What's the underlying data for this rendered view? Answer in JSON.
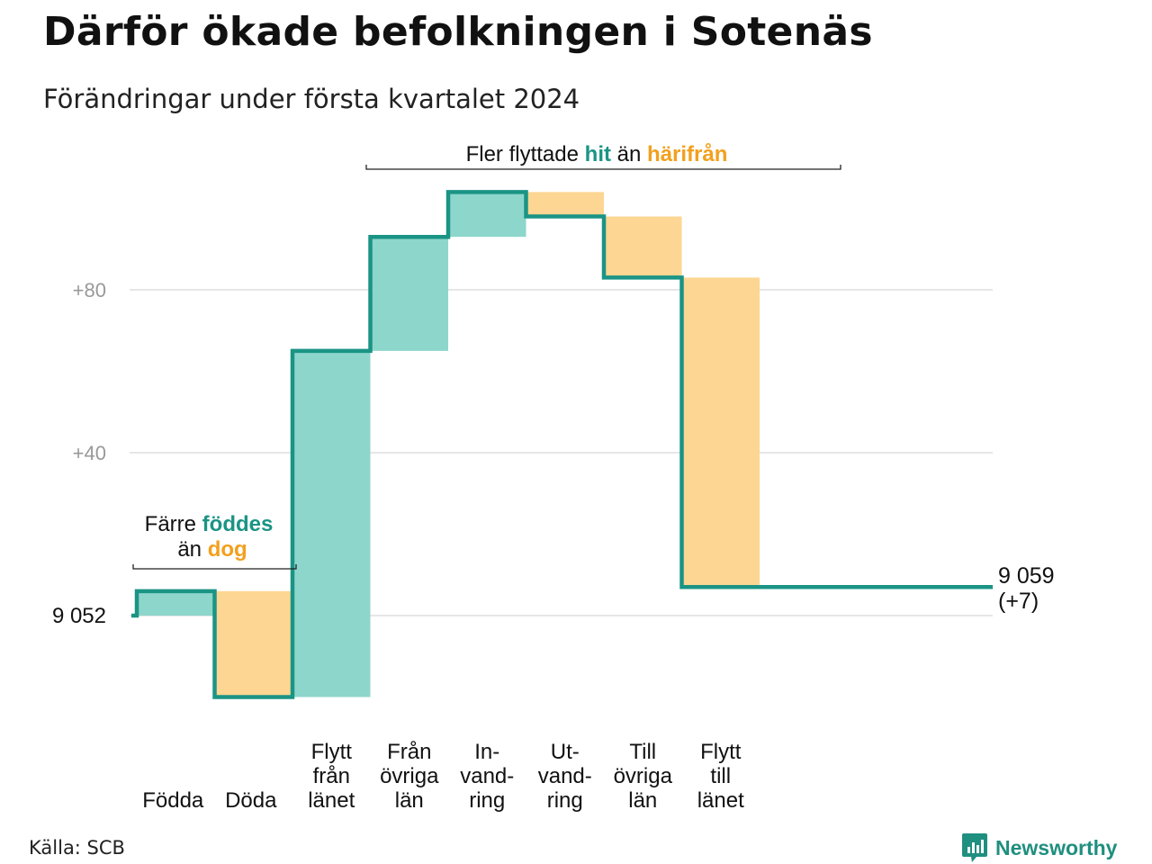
{
  "title": "Därför ökade befolkningen i Sotenäs",
  "subtitle": "Förändringar under första kvartalet 2024",
  "source": "Källa: SCB",
  "brand": "Newsworthy",
  "colors": {
    "increase_fill": "#8dd6cc",
    "decrease_fill": "#fcd692",
    "line": "#1a9485",
    "hit": "#1a9485",
    "harifran": "#f2a01e",
    "grid": "#dddddd",
    "tick": "#999999"
  },
  "annotations": {
    "births": {
      "prefix": "Färre",
      "highlight_hit": "föddes",
      "middle": "än",
      "highlight_away": "dog"
    },
    "migration": {
      "prefix": "Fler flyttade",
      "highlight_hit": "hit",
      "middle": "än",
      "highlight_away": "härifrån"
    }
  },
  "end_label": {
    "value": "9 059",
    "change": "(+7)"
  },
  "start_label": "9 052",
  "chart_data": {
    "type": "waterfall",
    "title": "Därför ökade befolkningen i Sotenäs",
    "subtitle": "Förändringar under första kvartalet 2024",
    "base": 9052,
    "end": 9059,
    "y_axis": {
      "min": -20,
      "max": 104,
      "ticks": [
        {
          "value": 0,
          "label": "9 052"
        },
        {
          "value": 40,
          "label": "+40"
        },
        {
          "value": 80,
          "label": "+80"
        }
      ]
    },
    "grid": true,
    "categories": [
      {
        "label": [
          "Födda"
        ],
        "change": 6,
        "direction": "increase"
      },
      {
        "label": [
          "Döda"
        ],
        "change": -26,
        "direction": "decrease"
      },
      {
        "label": [
          "Flytt",
          "från",
          "länet"
        ],
        "change": 85,
        "direction": "increase"
      },
      {
        "label": [
          "Från",
          "övriga",
          "län"
        ],
        "change": 28,
        "direction": "increase"
      },
      {
        "label": [
          "In-",
          "vand-",
          "ring"
        ],
        "change": 11,
        "direction": "increase"
      },
      {
        "label": [
          "Ut-",
          "vand-",
          "ring"
        ],
        "change": -6,
        "direction": "decrease"
      },
      {
        "label": [
          "Till",
          "övriga",
          "län"
        ],
        "change": -15,
        "direction": "decrease"
      },
      {
        "label": [
          "Flytt",
          "till",
          "länet"
        ],
        "change": -76,
        "direction": "decrease"
      }
    ]
  }
}
